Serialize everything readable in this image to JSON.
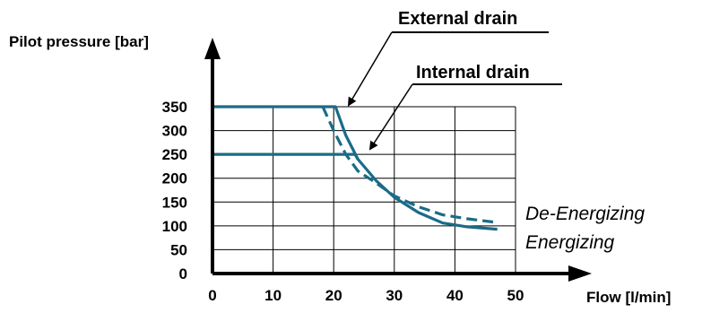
{
  "chart_data": {
    "type": "line",
    "ylabel": "Pilot pressure [bar]",
    "xlabel": "Flow [l/min]",
    "xlim": [
      0,
      50
    ],
    "ylim": [
      0,
      350
    ],
    "grid": true,
    "x_ticks": [
      0,
      10,
      20,
      30,
      40,
      50
    ],
    "y_ticks": [
      0,
      50,
      100,
      150,
      200,
      250,
      300,
      350
    ],
    "x_tick_labels": [
      "0",
      "10",
      "20",
      "30",
      "40",
      "50"
    ],
    "y_tick_labels": [
      "0",
      "50",
      "100",
      "150",
      "200",
      "250",
      "300",
      "350"
    ],
    "series": [
      {
        "name": "External drain",
        "label": "Energizing",
        "dashed": false,
        "points": [
          [
            0,
            350
          ],
          [
            20.3,
            350
          ],
          [
            22,
            290
          ],
          [
            24,
            240
          ],
          [
            27,
            195
          ],
          [
            30,
            160
          ],
          [
            34,
            128
          ],
          [
            38,
            106
          ],
          [
            42,
            98
          ],
          [
            47,
            93
          ]
        ]
      },
      {
        "name": "External drain",
        "label": "De-Energizing",
        "dashed": true,
        "points": [
          [
            18.2,
            350
          ],
          [
            20,
            300
          ],
          [
            22,
            250
          ],
          [
            24,
            215
          ],
          [
            27,
            190
          ],
          [
            30,
            163
          ],
          [
            34,
            140
          ],
          [
            38,
            123
          ],
          [
            42,
            115
          ],
          [
            47,
            107
          ]
        ]
      },
      {
        "name": "Internal drain",
        "dashed": false,
        "points": [
          [
            0,
            250
          ],
          [
            23.5,
            250
          ],
          [
            24,
            240
          ]
        ]
      }
    ],
    "annotations": [
      "External drain",
      "Internal drain",
      "De-Energizing",
      "Energizing"
    ]
  },
  "colors": {
    "curve": "#1a6b87",
    "grid": "#000000",
    "axis": "#000000",
    "text": "#000000"
  }
}
